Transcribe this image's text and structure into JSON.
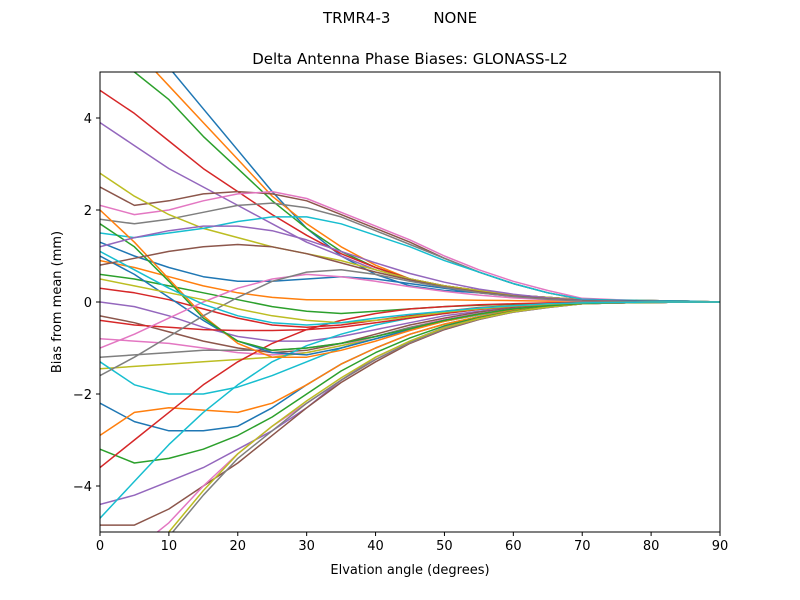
{
  "suptitle": "TRMR4-3         NONE",
  "chart_data": {
    "type": "line",
    "title": "Delta Antenna Phase Biases: GLONASS-L2",
    "xlabel": "Elvation angle (degrees)",
    "ylabel": "Bias from mean (mm)",
    "xlim": [
      0,
      90
    ],
    "ylim": [
      -5,
      5
    ],
    "xticks": [
      0,
      10,
      20,
      30,
      40,
      50,
      60,
      70,
      80,
      90
    ],
    "yticks": [
      -4,
      -2,
      0,
      2,
      4
    ],
    "xtick_labels": [
      "0",
      "10",
      "20",
      "30",
      "40",
      "50",
      "60",
      "70",
      "80",
      "90"
    ],
    "ytick_labels": [
      "−4",
      "−2",
      "0",
      "2",
      "4"
    ],
    "grid": false,
    "legend": "none",
    "colors": [
      "#1f77b4",
      "#ff7f0e",
      "#2ca02c",
      "#d62728",
      "#9467bd",
      "#8c564b",
      "#e377c2",
      "#7f7f7f",
      "#bcbd22",
      "#17becf"
    ],
    "x": [
      0,
      5,
      10,
      15,
      20,
      25,
      30,
      35,
      40,
      45,
      50,
      55,
      60,
      65,
      70,
      75,
      80,
      85,
      90
    ],
    "series": [
      {
        "values": [
          6.4,
          5.9,
          5.1,
          4.2,
          3.3,
          2.4,
          1.6,
          1.0,
          0.6,
          0.35,
          0.25,
          0.2,
          0.15,
          0.1,
          0.05,
          0.04,
          0.03,
          0.02,
          0.0
        ]
      },
      {
        "values": [
          5.9,
          5.5,
          4.7,
          3.9,
          3.1,
          2.3,
          1.7,
          1.2,
          0.8,
          0.5,
          0.35,
          0.25,
          0.15,
          0.1,
          0.05,
          0.04,
          0.03,
          0.02,
          0.0
        ]
      },
      {
        "values": [
          5.3,
          5.0,
          4.4,
          3.6,
          2.9,
          2.2,
          1.6,
          1.1,
          0.75,
          0.5,
          0.35,
          0.25,
          0.15,
          0.1,
          0.05,
          0.04,
          0.03,
          0.02,
          0.0
        ]
      },
      {
        "values": [
          4.6,
          4.1,
          3.5,
          2.9,
          2.4,
          1.9,
          1.45,
          1.05,
          0.75,
          0.5,
          0.35,
          0.25,
          0.15,
          0.1,
          0.05,
          0.04,
          0.03,
          0.02,
          0.0
        ]
      },
      {
        "values": [
          3.9,
          3.4,
          2.9,
          2.5,
          2.1,
          1.7,
          1.3,
          1.0,
          0.7,
          0.5,
          0.35,
          0.25,
          0.15,
          0.1,
          0.05,
          0.04,
          0.03,
          0.02,
          0.0
        ]
      },
      {
        "values": [
          2.5,
          2.1,
          2.2,
          2.35,
          2.4,
          2.35,
          2.2,
          1.9,
          1.6,
          1.3,
          0.95,
          0.65,
          0.4,
          0.2,
          0.05,
          0.03,
          0.02,
          0.01,
          0.0
        ]
      },
      {
        "values": [
          2.1,
          1.9,
          2.0,
          2.2,
          2.35,
          2.4,
          2.25,
          1.95,
          1.65,
          1.35,
          1.0,
          0.7,
          0.45,
          0.25,
          0.08,
          0.05,
          0.03,
          0.02,
          0.0
        ]
      },
      {
        "values": [
          1.8,
          1.7,
          1.8,
          1.95,
          2.1,
          2.15,
          2.05,
          1.85,
          1.55,
          1.25,
          0.95,
          0.65,
          0.4,
          0.2,
          0.06,
          0.04,
          0.03,
          0.02,
          0.0
        ]
      },
      {
        "values": [
          2.8,
          2.3,
          1.9,
          1.6,
          1.4,
          1.2,
          1.05,
          0.9,
          0.7,
          0.5,
          0.35,
          0.25,
          0.15,
          0.1,
          0.05,
          0.04,
          0.03,
          0.02,
          0.0
        ]
      },
      {
        "values": [
          1.5,
          1.4,
          1.5,
          1.6,
          1.75,
          1.85,
          1.85,
          1.7,
          1.45,
          1.2,
          0.9,
          0.65,
          0.4,
          0.2,
          0.06,
          0.04,
          0.03,
          0.02,
          0.0
        ]
      },
      {
        "values": [
          1.3,
          1.0,
          0.75,
          0.55,
          0.45,
          0.45,
          0.5,
          0.55,
          0.5,
          0.4,
          0.3,
          0.2,
          0.12,
          0.08,
          0.04,
          0.03,
          0.02,
          0.01,
          0.0
        ]
      },
      {
        "values": [
          0.9,
          0.75,
          0.55,
          0.35,
          0.2,
          0.1,
          0.05,
          0.05,
          0.05,
          0.05,
          0.05,
          0.04,
          0.03,
          0.02,
          0.02,
          0.01,
          0.01,
          0.0,
          0.0
        ]
      },
      {
        "values": [
          0.6,
          0.5,
          0.35,
          0.2,
          0.05,
          -0.1,
          -0.2,
          -0.25,
          -0.2,
          -0.15,
          -0.1,
          -0.07,
          -0.05,
          -0.03,
          -0.02,
          -0.01,
          0.0,
          0.0,
          0.0
        ]
      },
      {
        "values": [
          0.3,
          0.2,
          0.05,
          -0.15,
          -0.35,
          -0.5,
          -0.55,
          -0.5,
          -0.4,
          -0.3,
          -0.2,
          -0.12,
          -0.08,
          -0.05,
          -0.03,
          -0.02,
          -0.01,
          0.0,
          0.0
        ]
      },
      {
        "values": [
          0.0,
          -0.1,
          -0.3,
          -0.55,
          -0.75,
          -0.85,
          -0.85,
          -0.75,
          -0.6,
          -0.45,
          -0.3,
          -0.2,
          -0.12,
          -0.07,
          -0.03,
          -0.02,
          -0.01,
          0.0,
          0.0
        ]
      },
      {
        "values": [
          -0.3,
          -0.45,
          -0.65,
          -0.85,
          -1.0,
          -1.1,
          -1.05,
          -0.9,
          -0.7,
          -0.5,
          -0.35,
          -0.22,
          -0.13,
          -0.07,
          -0.03,
          -0.02,
          -0.01,
          0.0,
          0.0
        ]
      },
      {
        "values": [
          -0.8,
          -0.85,
          -0.9,
          -1.0,
          -1.1,
          -1.15,
          -1.1,
          -0.95,
          -0.75,
          -0.55,
          -0.38,
          -0.25,
          -0.15,
          -0.08,
          -0.03,
          -0.02,
          -0.01,
          0.0,
          0.0
        ]
      },
      {
        "values": [
          -1.2,
          -1.15,
          -1.1,
          -1.05,
          -1.05,
          -1.05,
          -1.0,
          -0.9,
          -0.75,
          -0.55,
          -0.4,
          -0.27,
          -0.16,
          -0.09,
          -0.03,
          -0.02,
          -0.01,
          0.0,
          0.0
        ]
      },
      {
        "values": [
          -1.45,
          -1.4,
          -1.35,
          -1.3,
          -1.25,
          -1.2,
          -1.1,
          -0.95,
          -0.8,
          -0.6,
          -0.42,
          -0.28,
          -0.17,
          -0.09,
          -0.03,
          -0.02,
          -0.01,
          0.0,
          0.0
        ]
      },
      {
        "values": [
          -1.3,
          -1.8,
          -2.0,
          -2.0,
          -1.85,
          -1.6,
          -1.3,
          -1.0,
          -0.8,
          -0.6,
          -0.42,
          -0.28,
          -0.17,
          -0.09,
          -0.03,
          -0.02,
          -0.01,
          0.0,
          0.0
        ]
      },
      {
        "values": [
          -2.2,
          -2.6,
          -2.8,
          -2.8,
          -2.7,
          -2.3,
          -1.8,
          -1.35,
          -1.0,
          -0.7,
          -0.48,
          -0.32,
          -0.19,
          -0.1,
          -0.04,
          -0.02,
          -0.01,
          0.0,
          0.0
        ]
      },
      {
        "values": [
          -2.9,
          -2.4,
          -2.3,
          -2.35,
          -2.4,
          -2.2,
          -1.8,
          -1.35,
          -1.0,
          -0.7,
          -0.48,
          -0.32,
          -0.19,
          -0.1,
          -0.04,
          -0.02,
          -0.01,
          0.0,
          0.0
        ]
      },
      {
        "values": [
          -3.2,
          -3.5,
          -3.4,
          -3.2,
          -2.9,
          -2.5,
          -2.0,
          -1.5,
          -1.1,
          -0.78,
          -0.52,
          -0.34,
          -0.2,
          -0.1,
          -0.04,
          -0.02,
          -0.01,
          0.0,
          0.0
        ]
      },
      {
        "values": [
          -3.6,
          -3.0,
          -2.4,
          -1.8,
          -1.3,
          -0.9,
          -0.6,
          -0.4,
          -0.25,
          -0.15,
          -0.1,
          -0.06,
          -0.04,
          -0.02,
          -0.01,
          0.0,
          0.0,
          0.0,
          0.0
        ]
      },
      {
        "values": [
          -4.4,
          -4.2,
          -3.9,
          -3.6,
          -3.2,
          -2.8,
          -2.3,
          -1.7,
          -1.2,
          -0.85,
          -0.55,
          -0.36,
          -0.21,
          -0.11,
          -0.04,
          -0.02,
          -0.01,
          0.0,
          0.0
        ]
      },
      {
        "values": [
          -4.85,
          -4.85,
          -4.5,
          -4.0,
          -3.5,
          -2.9,
          -2.3,
          -1.75,
          -1.3,
          -0.9,
          -0.6,
          -0.38,
          -0.22,
          -0.12,
          -0.04,
          -0.02,
          -0.01,
          0.0,
          0.0
        ]
      },
      {
        "values": [
          -5.8,
          -5.4,
          -4.8,
          -4.0,
          -3.3,
          -2.7,
          -2.2,
          -1.7,
          -1.25,
          -0.88,
          -0.58,
          -0.37,
          -0.22,
          -0.12,
          -0.04,
          -0.02,
          -0.01,
          0.0,
          0.0
        ]
      },
      {
        "values": [
          -6.3,
          -5.9,
          -5.1,
          -4.2,
          -3.4,
          -2.8,
          -2.2,
          -1.7,
          -1.25,
          -0.88,
          -0.58,
          -0.37,
          -0.22,
          -0.12,
          -0.04,
          -0.02,
          -0.01,
          0.0,
          0.0
        ]
      },
      {
        "values": [
          -5.5,
          -5.6,
          -5.0,
          -4.1,
          -3.3,
          -2.7,
          -2.15,
          -1.65,
          -1.2,
          -0.85,
          -0.56,
          -0.36,
          -0.21,
          -0.11,
          -0.04,
          -0.02,
          -0.01,
          0.0,
          0.0
        ]
      },
      {
        "values": [
          -4.7,
          -3.9,
          -3.1,
          -2.4,
          -1.8,
          -1.3,
          -0.95,
          -0.7,
          -0.5,
          -0.35,
          -0.25,
          -0.16,
          -0.1,
          -0.05,
          -0.02,
          -0.01,
          0.0,
          0.0,
          0.0
        ]
      },
      {
        "values": [
          1.0,
          0.6,
          0.1,
          -0.4,
          -0.85,
          -1.1,
          -1.15,
          -1.0,
          -0.8,
          -0.6,
          -0.4,
          -0.26,
          -0.15,
          -0.08,
          -0.03,
          -0.02,
          -0.01,
          0.0,
          0.0
        ]
      },
      {
        "values": [
          2.0,
          1.3,
          0.5,
          -0.3,
          -0.9,
          -1.2,
          -1.2,
          -1.05,
          -0.85,
          -0.62,
          -0.42,
          -0.27,
          -0.16,
          -0.08,
          -0.03,
          -0.02,
          -0.01,
          0.0,
          0.0
        ]
      },
      {
        "values": [
          1.7,
          1.2,
          0.45,
          -0.35,
          -0.85,
          -1.05,
          -1.0,
          -0.9,
          -0.75,
          -0.58,
          -0.4,
          -0.26,
          -0.15,
          -0.08,
          -0.03,
          -0.02,
          -0.01,
          0.0,
          0.0
        ]
      },
      {
        "values": [
          -0.4,
          -0.5,
          -0.55,
          -0.6,
          -0.62,
          -0.62,
          -0.6,
          -0.55,
          -0.45,
          -0.35,
          -0.25,
          -0.16,
          -0.1,
          -0.05,
          -0.02,
          -0.01,
          0.0,
          0.0,
          0.0
        ]
      },
      {
        "values": [
          1.2,
          1.4,
          1.55,
          1.65,
          1.65,
          1.55,
          1.35,
          1.1,
          0.85,
          0.62,
          0.43,
          0.28,
          0.17,
          0.09,
          0.04,
          0.02,
          0.01,
          0.0,
          0.0
        ]
      },
      {
        "values": [
          0.8,
          0.95,
          1.1,
          1.2,
          1.25,
          1.2,
          1.05,
          0.85,
          0.65,
          0.48,
          0.33,
          0.22,
          0.13,
          0.07,
          0.03,
          0.02,
          0.01,
          0.0,
          0.0
        ]
      },
      {
        "values": [
          -1.0,
          -0.7,
          -0.35,
          0.0,
          0.3,
          0.5,
          0.6,
          0.55,
          0.45,
          0.33,
          0.23,
          0.15,
          0.09,
          0.05,
          0.02,
          0.01,
          0.0,
          0.0,
          0.0
        ]
      },
      {
        "values": [
          -1.6,
          -1.2,
          -0.75,
          -0.3,
          0.1,
          0.45,
          0.65,
          0.7,
          0.6,
          0.45,
          0.32,
          0.2,
          0.12,
          0.06,
          0.02,
          0.01,
          0.0,
          0.0,
          0.0
        ]
      },
      {
        "values": [
          0.5,
          0.35,
          0.2,
          0.05,
          -0.15,
          -0.3,
          -0.4,
          -0.45,
          -0.4,
          -0.32,
          -0.22,
          -0.15,
          -0.09,
          -0.05,
          -0.02,
          -0.01,
          0.0,
          0.0,
          0.0
        ]
      },
      {
        "values": [
          1.1,
          0.7,
          0.3,
          -0.05,
          -0.3,
          -0.45,
          -0.5,
          -0.45,
          -0.35,
          -0.27,
          -0.2,
          -0.13,
          -0.08,
          -0.04,
          -0.02,
          -0.01,
          0.0,
          0.0,
          0.0
        ]
      }
    ]
  }
}
